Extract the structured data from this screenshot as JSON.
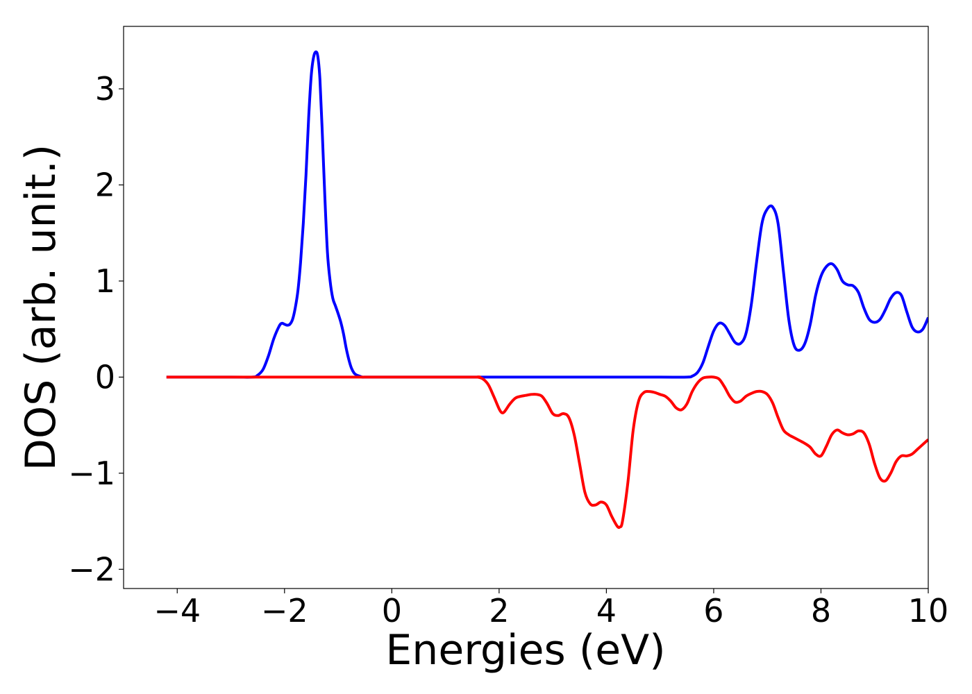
{
  "chart_data": {
    "type": "line",
    "title": "",
    "xlabel": "Energies (eV)",
    "ylabel": "DOS (arb. unit.)",
    "xlim": [
      -5,
      10
    ],
    "ylim": [
      -2.2,
      3.65
    ],
    "xticks": [
      -4,
      -2,
      0,
      2,
      4,
      6,
      8,
      10
    ],
    "yticks": [
      -2,
      -1,
      0,
      1,
      2,
      3
    ],
    "grid": false,
    "legend": "none",
    "series": [
      {
        "color": "#0000ff",
        "x": [
          -4.2,
          -3.0,
          -2.6,
          -2.5,
          -2.4,
          -2.3,
          -2.2,
          -2.1,
          -2.05,
          -2.0,
          -1.95,
          -1.9,
          -1.85,
          -1.8,
          -1.75,
          -1.7,
          -1.65,
          -1.6,
          -1.55,
          -1.5,
          -1.45,
          -1.4,
          -1.37,
          -1.34,
          -1.3,
          -1.25,
          -1.2,
          -1.15,
          -1.1,
          -1.05,
          -1.0,
          -0.95,
          -0.9,
          -0.85,
          -0.8,
          -0.75,
          -0.7,
          -0.65,
          -0.6,
          -0.55,
          -0.5,
          -0.45,
          -0.4,
          -0.3,
          1.0,
          2.0,
          3.0,
          4.0,
          5.0,
          5.5,
          5.6,
          5.7,
          5.8,
          5.9,
          6.0,
          6.1,
          6.2,
          6.3,
          6.4,
          6.5,
          6.6,
          6.7,
          6.8,
          6.9,
          7.0,
          7.1,
          7.2,
          7.3,
          7.4,
          7.5,
          7.6,
          7.7,
          7.8,
          7.9,
          8.0,
          8.1,
          8.2,
          8.3,
          8.4,
          8.5,
          8.6,
          8.7,
          8.8,
          8.9,
          9.0,
          9.1,
          9.2,
          9.3,
          9.4,
          9.5,
          9.6,
          9.7,
          9.8,
          9.9,
          10.0
        ],
        "y": [
          0.0,
          0.0,
          0.0,
          0.02,
          0.08,
          0.22,
          0.4,
          0.53,
          0.56,
          0.55,
          0.54,
          0.55,
          0.6,
          0.72,
          0.9,
          1.2,
          1.6,
          2.1,
          2.7,
          3.15,
          3.35,
          3.38,
          3.3,
          3.1,
          2.6,
          1.9,
          1.3,
          1.0,
          0.82,
          0.74,
          0.66,
          0.57,
          0.45,
          0.3,
          0.18,
          0.09,
          0.04,
          0.02,
          0.01,
          0.0,
          0.0,
          0.0,
          0.0,
          0.0,
          0.0,
          0.0,
          0.0,
          0.0,
          0.0,
          0.0,
          0.01,
          0.05,
          0.15,
          0.32,
          0.48,
          0.56,
          0.54,
          0.45,
          0.36,
          0.35,
          0.45,
          0.75,
          1.2,
          1.6,
          1.75,
          1.77,
          1.6,
          1.1,
          0.6,
          0.33,
          0.28,
          0.35,
          0.55,
          0.85,
          1.05,
          1.15,
          1.18,
          1.12,
          1.0,
          0.96,
          0.95,
          0.88,
          0.72,
          0.6,
          0.57,
          0.6,
          0.7,
          0.82,
          0.88,
          0.85,
          0.68,
          0.52,
          0.47,
          0.5,
          0.62
        ]
      },
      {
        "color": "#ff0000",
        "x": [
          -4.2,
          0.0,
          1.5,
          1.6,
          1.7,
          1.8,
          1.9,
          2.0,
          2.05,
          2.1,
          2.2,
          2.3,
          2.4,
          2.5,
          2.6,
          2.7,
          2.8,
          2.9,
          3.0,
          3.1,
          3.2,
          3.3,
          3.4,
          3.5,
          3.6,
          3.7,
          3.8,
          3.9,
          4.0,
          4.1,
          4.2,
          4.25,
          4.3,
          4.4,
          4.5,
          4.6,
          4.7,
          4.8,
          4.9,
          5.0,
          5.1,
          5.2,
          5.3,
          5.4,
          5.5,
          5.6,
          5.7,
          5.8,
          5.9,
          6.0,
          6.1,
          6.2,
          6.3,
          6.4,
          6.5,
          6.6,
          6.7,
          6.8,
          6.9,
          7.0,
          7.1,
          7.2,
          7.3,
          7.4,
          7.5,
          7.6,
          7.7,
          7.8,
          7.9,
          8.0,
          8.1,
          8.2,
          8.3,
          8.4,
          8.5,
          8.6,
          8.7,
          8.8,
          8.9,
          9.0,
          9.1,
          9.2,
          9.3,
          9.4,
          9.5,
          9.6,
          9.7,
          9.8,
          9.9,
          10.0
        ],
        "y": [
          0.0,
          0.0,
          0.0,
          0.0,
          -0.02,
          -0.08,
          -0.2,
          -0.33,
          -0.37,
          -0.36,
          -0.28,
          -0.22,
          -0.2,
          -0.19,
          -0.18,
          -0.18,
          -0.2,
          -0.28,
          -0.38,
          -0.4,
          -0.38,
          -0.42,
          -0.6,
          -0.9,
          -1.2,
          -1.32,
          -1.33,
          -1.3,
          -1.33,
          -1.45,
          -1.55,
          -1.56,
          -1.5,
          -1.1,
          -0.55,
          -0.25,
          -0.16,
          -0.15,
          -0.16,
          -0.18,
          -0.2,
          -0.25,
          -0.32,
          -0.34,
          -0.28,
          -0.15,
          -0.06,
          -0.01,
          0.0,
          0.0,
          -0.02,
          -0.1,
          -0.2,
          -0.26,
          -0.25,
          -0.2,
          -0.17,
          -0.15,
          -0.15,
          -0.18,
          -0.27,
          -0.42,
          -0.55,
          -0.6,
          -0.63,
          -0.66,
          -0.69,
          -0.73,
          -0.8,
          -0.82,
          -0.72,
          -0.6,
          -0.55,
          -0.58,
          -0.6,
          -0.59,
          -0.56,
          -0.58,
          -0.7,
          -0.9,
          -1.05,
          -1.08,
          -1.0,
          -0.88,
          -0.82,
          -0.82,
          -0.8,
          -0.75,
          -0.7,
          -0.65
        ]
      }
    ]
  }
}
